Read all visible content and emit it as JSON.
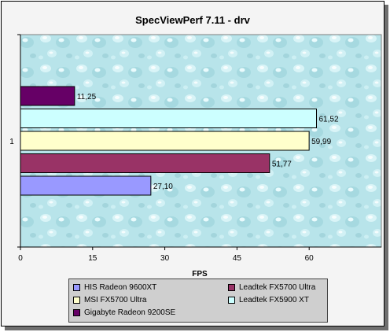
{
  "chart_data": {
    "type": "bar",
    "orientation": "horizontal",
    "title": "SpecViewPerf 7.11 - drv",
    "xlabel": "FPS",
    "ylabel": "",
    "categories": [
      "1"
    ],
    "xlim": [
      0,
      75
    ],
    "xticks": [
      "0",
      "15",
      "30",
      "45",
      "60"
    ],
    "xtick_values": [
      0,
      15,
      30,
      45,
      60
    ],
    "grid": false,
    "legend_position": "bottom",
    "series": [
      {
        "name": "HIS Radeon 9600XT",
        "value": 27.1,
        "label": "27,10",
        "color": "#9999ff"
      },
      {
        "name": "Leadtek FX5700 Ultra",
        "value": 51.77,
        "label": "51,77",
        "color": "#993366"
      },
      {
        "name": "MSI FX5700 Ultra",
        "value": 59.99,
        "label": "59,99",
        "color": "#ffffcc"
      },
      {
        "name": "Leadtek FX5900 XT",
        "value": 61.52,
        "label": "61,52",
        "color": "#ccffff"
      },
      {
        "name": "Gigabyte Radeon 9200SE",
        "value": 11.25,
        "label": "11,25",
        "color": "#660066"
      }
    ],
    "plot_background": "#bfe8ec"
  }
}
